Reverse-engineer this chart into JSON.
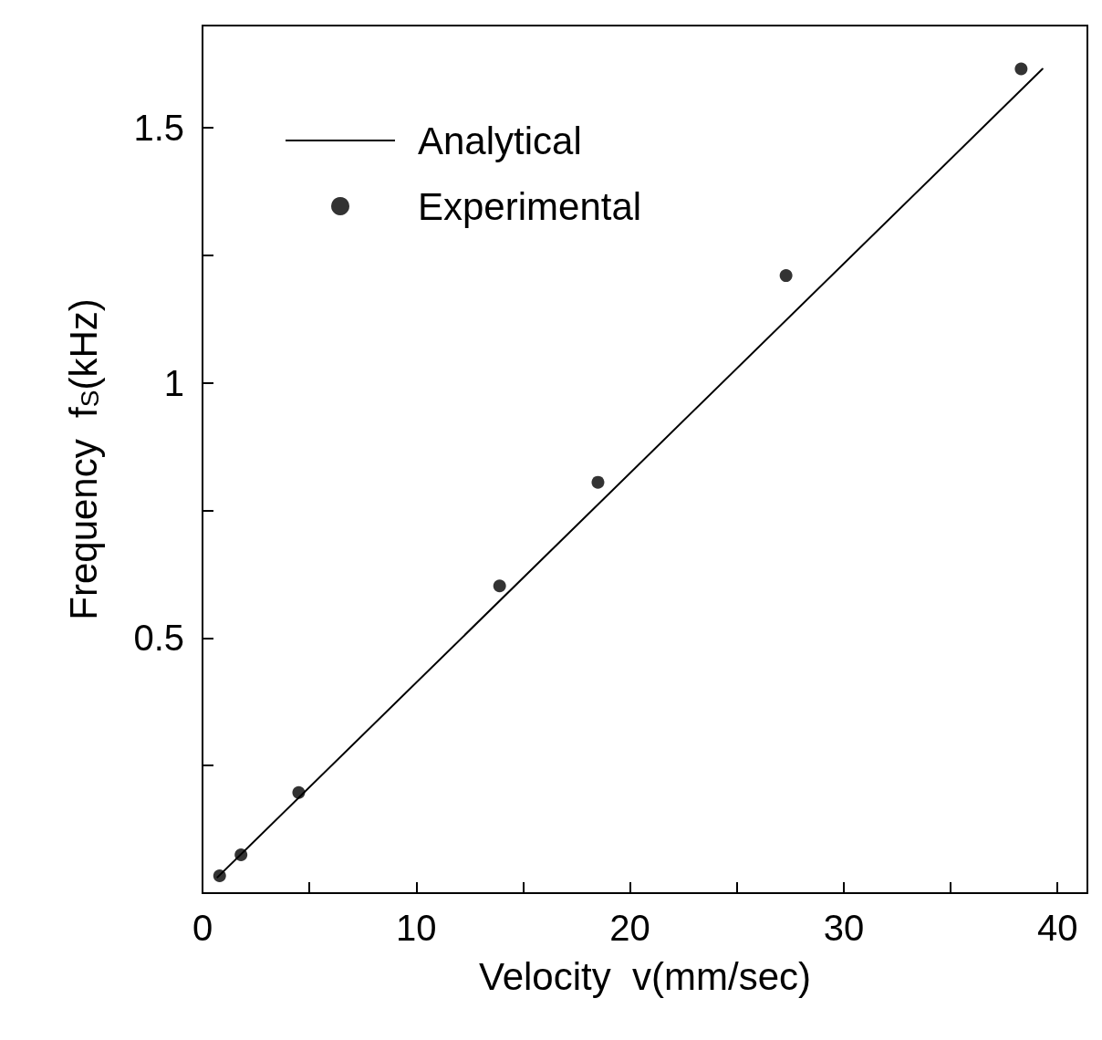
{
  "chart_data": {
    "type": "scatter",
    "xlabel": "Velocity  v(mm/sec)",
    "ylabel": "Frequency  f$_{S}$(kHz)",
    "xlim": [
      0,
      41.4
    ],
    "ylim": [
      0,
      1.7
    ],
    "xticks": [
      0,
      {
        "value": 5,
        "label": null
      },
      10,
      {
        "value": 15,
        "label": null
      },
      20,
      {
        "value": 25,
        "label": null
      },
      30,
      {
        "value": 35,
        "label": null
      },
      40
    ],
    "yticks": [
      {
        "value": 0,
        "label": null
      },
      {
        "value": 0.25,
        "label": null
      },
      0.5,
      {
        "value": 0.75,
        "label": null
      },
      1,
      {
        "value": 1.25,
        "label": null
      },
      1.5
    ],
    "legend": "top left",
    "grid": false,
    "series": [
      {
        "name": "Analytical",
        "type": "line",
        "color": "#000000",
        "marker": "none",
        "line_style": "solid",
        "x": [
          0.7,
          39.3
        ],
        "values": [
          0.031,
          1.615
        ]
      },
      {
        "name": "Experimental",
        "color": "#000000",
        "marker": "circle",
        "x": [
          0.8,
          1.8,
          4.5,
          13.9,
          18.5,
          27.3,
          38.3
        ],
        "values": [
          0.034,
          0.075,
          0.197,
          0.602,
          0.805,
          1.21,
          1.615
        ]
      }
    ]
  }
}
